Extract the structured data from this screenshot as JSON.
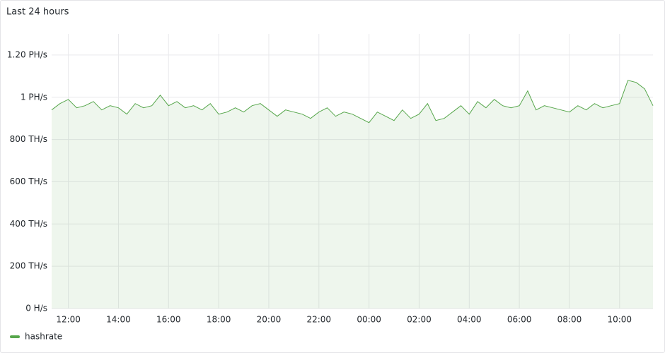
{
  "chart_data": {
    "type": "area",
    "title": "Last 24 hours",
    "x": [
      "11:20",
      "11:40",
      "12:00",
      "12:20",
      "12:40",
      "13:00",
      "13:20",
      "13:40",
      "14:00",
      "14:20",
      "14:40",
      "15:00",
      "15:20",
      "15:40",
      "16:00",
      "16:20",
      "16:40",
      "17:00",
      "17:20",
      "17:40",
      "18:00",
      "18:20",
      "18:40",
      "19:00",
      "19:20",
      "19:40",
      "20:00",
      "20:20",
      "20:40",
      "21:00",
      "21:20",
      "21:40",
      "22:00",
      "22:20",
      "22:40",
      "23:00",
      "23:20",
      "23:40",
      "00:00",
      "00:20",
      "00:40",
      "01:00",
      "01:20",
      "01:40",
      "02:00",
      "02:20",
      "02:40",
      "03:00",
      "03:20",
      "03:40",
      "04:00",
      "04:20",
      "04:40",
      "05:00",
      "05:20",
      "05:40",
      "06:00",
      "06:20",
      "06:40",
      "07:00",
      "07:20",
      "07:40",
      "08:00",
      "08:20",
      "08:40",
      "09:00",
      "09:20",
      "09:40",
      "10:00",
      "10:20",
      "10:40",
      "11:00",
      "11:20"
    ],
    "series": [
      {
        "name": "hashrate",
        "color": "#56a64b",
        "values": [
          940,
          970,
          990,
          950,
          960,
          980,
          940,
          960,
          950,
          920,
          970,
          950,
          960,
          1010,
          960,
          980,
          950,
          960,
          940,
          970,
          920,
          930,
          950,
          930,
          960,
          970,
          940,
          910,
          940,
          930,
          920,
          900,
          930,
          950,
          910,
          930,
          920,
          900,
          880,
          930,
          910,
          890,
          940,
          900,
          920,
          970,
          890,
          900,
          930,
          960,
          920,
          980,
          950,
          990,
          960,
          950,
          960,
          1030,
          940,
          960,
          950,
          940,
          930,
          960,
          940,
          970,
          950,
          960,
          970,
          1080,
          1070,
          1040,
          960
        ]
      }
    ],
    "xticks": [
      "12:00",
      "14:00",
      "16:00",
      "18:00",
      "20:00",
      "22:00",
      "00:00",
      "02:00",
      "04:00",
      "06:00",
      "08:00",
      "10:00"
    ],
    "ylim": [
      0,
      1300
    ],
    "yticks": [
      {
        "value": 0,
        "label": "0 H/s"
      },
      {
        "value": 200,
        "label": "200 TH/s"
      },
      {
        "value": 400,
        "label": "400 TH/s"
      },
      {
        "value": 600,
        "label": "600 TH/s"
      },
      {
        "value": 800,
        "label": "800 TH/s"
      },
      {
        "value": 1000,
        "label": "1 PH/s"
      },
      {
        "value": 1200,
        "label": "1.20 PH/s"
      }
    ],
    "grid": true
  }
}
